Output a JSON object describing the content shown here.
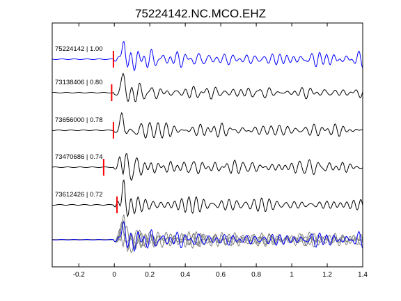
{
  "chart_data": {
    "type": "line",
    "title": "75224142.NC.MCO.EHZ",
    "xlabel": "",
    "ylabel": "",
    "xlim": [
      -0.35,
      1.4
    ],
    "x_ticks": [
      -0.2,
      0,
      0.2,
      0.4,
      0.6,
      0.8,
      1,
      1.2,
      1.4
    ],
    "x_tick_labels": [
      "-0.2",
      "0",
      "0.2",
      "0.4",
      "0.6",
      "0.8",
      "1",
      "1.2",
      "1.4"
    ],
    "grid": false,
    "colors": {
      "master": "#0000ff",
      "trace": "#000000",
      "overlay": "#808080",
      "pick": "#ff0000"
    },
    "series": [
      {
        "label": "75224142 | 1.00",
        "color": "#0000ff",
        "pick_time": -0.005,
        "seed": 3
      },
      {
        "label": "73138406 | 0.80",
        "color": "#000000",
        "pick_time": -0.015,
        "seed": 7
      },
      {
        "label": "73656000 | 0.78",
        "color": "#000000",
        "pick_time": -0.005,
        "seed": 11
      },
      {
        "label": "73470686 | 0.74",
        "color": "#000000",
        "pick_time": -0.06,
        "seed": 19
      },
      {
        "label": "73612426 | 0.72",
        "color": "#000000",
        "pick_time": 0.015,
        "seed": 23
      }
    ],
    "stack": {
      "description_hidden": true,
      "seeds": [
        7,
        11,
        19,
        23,
        3
      ]
    }
  }
}
